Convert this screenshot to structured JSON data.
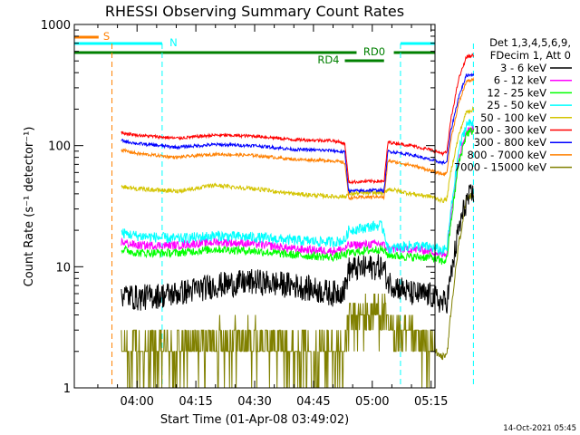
{
  "chart_data": {
    "type": "line",
    "title": "RHESSI Observing Summary Count Rates",
    "xlabel": "Start Time (01-Apr-08 03:49:02)",
    "ylabel": "Count Rate (s⁻¹ detector⁻¹)",
    "y_scale": "log",
    "ylim": [
      1,
      1000
    ],
    "xlim_minutes": [
      -16,
      76
    ],
    "x_ticks": [
      {
        "label": "04:00",
        "min": 0
      },
      {
        "label": "04:15",
        "min": 15
      },
      {
        "label": "04:30",
        "min": 30
      },
      {
        "label": "04:45",
        "min": 45
      },
      {
        "label": "05:00",
        "min": 60
      },
      {
        "label": "05:15",
        "min": 75
      }
    ],
    "y_ticks": [
      {
        "label": "1",
        "value": 1
      },
      {
        "label": "10",
        "value": 10
      },
      {
        "label": "100",
        "value": 100
      },
      {
        "label": "1000",
        "value": 1000
      }
    ],
    "legend_header": [
      "Det 1,3,4,5,6,9,",
      "FDecim 1, Att 0"
    ],
    "legend_position": "right",
    "annotations": {
      "saa_label": "S",
      "night_label": "N",
      "rd0_label": "RD0",
      "rd4_label": "RD4",
      "timestamp": "14-Oct-2021 05:45"
    },
    "vlines": [
      {
        "min": -6.4,
        "color": "#ff8000"
      },
      {
        "min": 6.4,
        "color": "#00ffff"
      },
      {
        "min": 67.2,
        "color": "#00ffff"
      },
      {
        "min": 85.8,
        "color": "#00ffff"
      }
    ],
    "bars": {
      "saa": {
        "start": -16,
        "end": -9.8,
        "color": "#ff8000"
      },
      "night": [
        {
          "start": -16,
          "end": 6.4
        },
        {
          "start": 67.2,
          "end": 86
        }
      ],
      "rd0": [
        {
          "start": -16,
          "end": 56
        },
        {
          "start": 65.5,
          "end": 86
        }
      ],
      "rd4": [
        {
          "start": 53,
          "end": 63
        }
      ]
    },
    "x_breakpoints": [
      -4,
      0,
      10,
      20,
      30,
      40,
      50,
      53,
      54,
      62,
      63,
      64,
      70,
      75,
      78,
      79,
      80,
      82,
      84,
      86
    ],
    "series": [
      {
        "name": "3 - 6 keV",
        "color": "#000000",
        "noise": 0.25,
        "values": [
          6,
          5.5,
          6,
          7,
          7.5,
          7,
          6,
          6.5,
          9.5,
          10,
          9.5,
          7.5,
          6,
          5.8,
          5,
          5.2,
          8,
          20,
          35,
          40
        ]
      },
      {
        "name": "6 - 12 keV",
        "color": "#ff00ff",
        "noise": 0.08,
        "values": [
          16,
          15,
          15,
          16,
          15.5,
          14,
          13.5,
          14,
          15,
          15.5,
          15,
          14,
          14,
          13.5,
          12.5,
          13,
          25,
          80,
          130,
          140
        ]
      },
      {
        "name": "12 - 25 keV",
        "color": "#00ff00",
        "noise": 0.08,
        "values": [
          14,
          13,
          13,
          14,
          13.5,
          12.5,
          12,
          12.5,
          13,
          14,
          13.5,
          12.5,
          12,
          12,
          11,
          11.5,
          22,
          70,
          125,
          135
        ]
      },
      {
        "name": "25 - 50 keV",
        "color": "#00ffff",
        "noise": 0.1,
        "values": [
          19,
          18,
          17,
          18,
          17.5,
          16.5,
          16,
          16.5,
          20,
          22,
          20,
          14,
          15,
          14.5,
          13.5,
          14,
          28,
          90,
          150,
          155
        ]
      },
      {
        "name": "50 - 100 keV",
        "color": "#d4c400",
        "noise": 0.04,
        "values": [
          46,
          44,
          42,
          47,
          44,
          40,
          38,
          38,
          40,
          41,
          40,
          44,
          40,
          38,
          35,
          36,
          60,
          120,
          190,
          200
        ]
      },
      {
        "name": "100 - 300 keV",
        "color": "#ff0000",
        "noise": 0.03,
        "values": [
          128,
          122,
          115,
          122,
          120,
          112,
          110,
          104,
          50,
          51,
          50,
          107,
          100,
          92,
          86,
          88,
          160,
          350,
          540,
          560
        ]
      },
      {
        "name": "300 - 800 keV",
        "color": "#0000ff",
        "noise": 0.03,
        "values": [
          110,
          104,
          97,
          102,
          100,
          93,
          91,
          88,
          42,
          43,
          42,
          90,
          84,
          76,
          72,
          73,
          130,
          250,
          380,
          390
        ]
      },
      {
        "name": "800 - 7000 keV",
        "color": "#ff8000",
        "noise": 0.03,
        "values": [
          92,
          86,
          80,
          85,
          83,
          77,
          75,
          72,
          37,
          38,
          37,
          75,
          69,
          62,
          58,
          59,
          110,
          220,
          340,
          350
        ]
      },
      {
        "name": "7000 - 15000 keV",
        "color": "#808000",
        "noise": 0.5,
        "values": [
          2,
          2,
          2,
          2.5,
          2.5,
          2.2,
          2,
          2,
          3.5,
          4.5,
          4.2,
          3,
          2.5,
          2.2,
          1.8,
          1.8,
          4,
          15,
          35,
          40
        ]
      }
    ]
  }
}
